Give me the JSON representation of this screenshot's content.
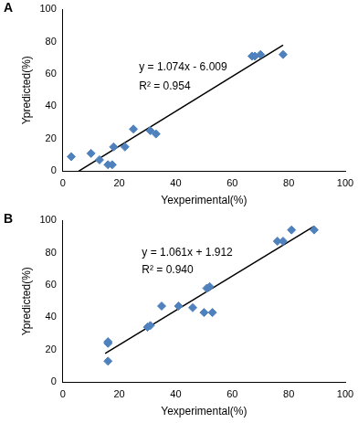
{
  "chart_data": [
    {
      "type": "scatter",
      "title": "A",
      "x_label": "Yexperimental(%)",
      "y_label": "Ypredicted(%)",
      "annotations": [
        "y = 1.074x - 6.009",
        "R² = 0.954"
      ],
      "xlim": [
        0,
        100
      ],
      "ylim": [
        0,
        100
      ],
      "xticks": [
        0,
        20,
        40,
        60,
        80,
        100
      ],
      "yticks": [
        0,
        20,
        40,
        60,
        80,
        100
      ],
      "grid": false,
      "series": [
        {
          "type": "scatter",
          "color": "#4f81bd",
          "marker": "diamond",
          "x": [
            3,
            10,
            13,
            16,
            17.5,
            18,
            22,
            25,
            31,
            33,
            67,
            68,
            70,
            78
          ],
          "values": [
            9,
            11,
            7,
            4,
            4,
            15,
            15,
            26,
            25,
            23,
            71,
            71,
            72,
            72
          ]
        },
        {
          "type": "line",
          "color": "#000000",
          "line_style": "solid",
          "x": [
            5.6,
            78
          ],
          "values": [
            0,
            77.8
          ]
        }
      ]
    },
    {
      "type": "scatter",
      "title": "B",
      "x_label": "Yexperimental(%)",
      "y_label": "Ypredicted(%)",
      "annotations": [
        "y = 1.061x + 1.912",
        "R² = 0.940"
      ],
      "xlim": [
        0,
        100
      ],
      "ylim": [
        0,
        100
      ],
      "xticks": [
        0,
        20,
        40,
        60,
        80,
        100
      ],
      "yticks": [
        0,
        20,
        40,
        60,
        80,
        100
      ],
      "grid": false,
      "series": [
        {
          "type": "scatter",
          "color": "#4f81bd",
          "marker": "diamond",
          "x": [
            16,
            16,
            16,
            30,
            31,
            35,
            41,
            46,
            50,
            51,
            52,
            53,
            76,
            78,
            81,
            89
          ],
          "values": [
            13,
            24,
            25,
            34,
            35,
            47,
            47,
            46,
            43,
            58,
            59,
            43,
            87,
            87,
            94,
            94
          ]
        },
        {
          "type": "line",
          "color": "#000000",
          "line_style": "solid",
          "x": [
            15,
            89
          ],
          "values": [
            17.8,
            96.3
          ]
        }
      ]
    }
  ]
}
